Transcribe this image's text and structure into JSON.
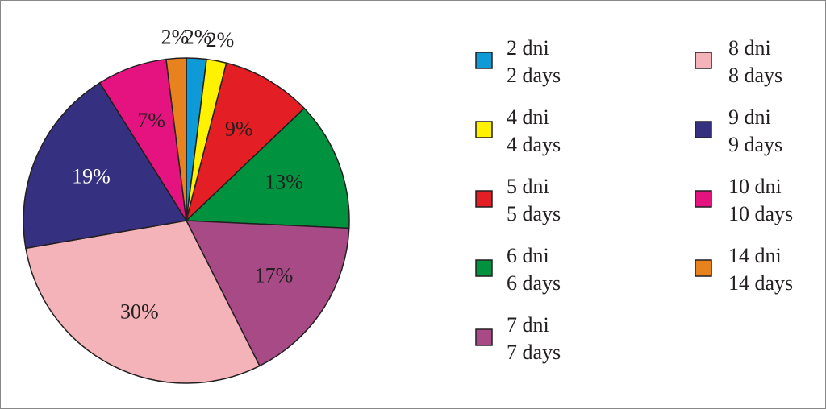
{
  "chart_data": {
    "type": "pie",
    "categories": [
      [
        "2 dni",
        "2 days"
      ],
      [
        "4 dni",
        "4 days"
      ],
      [
        "5 dni",
        "5 days"
      ],
      [
        "6 dni",
        "6 days"
      ],
      [
        "7 dni",
        "7 days"
      ],
      [
        "8 dni",
        "8 days"
      ],
      [
        "9 dni",
        "9 days"
      ],
      [
        "10 dni",
        "10 days"
      ],
      [
        "14 dni",
        "14 days"
      ]
    ],
    "values": [
      2,
      2,
      9,
      13,
      17,
      30,
      19,
      7,
      2
    ],
    "value_labels": [
      "2%",
      "2%",
      "9%",
      "13%",
      "17%",
      "30%",
      "19%",
      "7%",
      "2%"
    ],
    "colors": [
      "#0e9ad7",
      "#fff200",
      "#e31e24",
      "#00923f",
      "#a84a86",
      "#f4b3b8",
      "#35307f",
      "#e4137f",
      "#e8821e"
    ]
  }
}
